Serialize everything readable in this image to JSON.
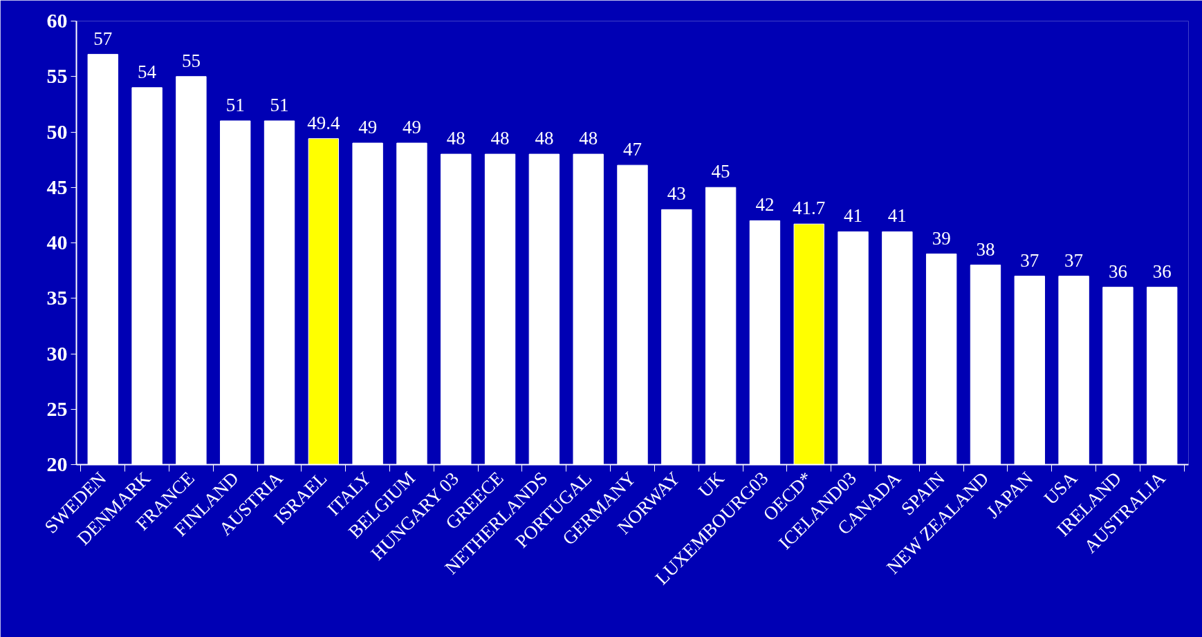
{
  "chart_data": {
    "type": "bar",
    "categories": [
      "SWEDEN",
      "DENMARK",
      "FRANCE",
      "FINLAND",
      "AUSTRIA",
      "ISRAEL",
      "ITALY",
      "BELGIUM",
      "HUNGARY 03",
      "GREECE",
      "NETHERLANDS",
      "PORTUGAL",
      "GERMANY",
      "NORWAY",
      "UK",
      "LUXEMBOURG03",
      "OECD*",
      "ICELAND03",
      "CANADA",
      "SPAIN",
      "NEW ZEALAND",
      "JAPAN",
      "USA",
      "IRELAND",
      "AUSTRALIA"
    ],
    "values": [
      57,
      54,
      55,
      51,
      51,
      49.4,
      49,
      49,
      48,
      48,
      48,
      48,
      47,
      43,
      45,
      42,
      41.7,
      41,
      41,
      39,
      38,
      37,
      37,
      36,
      36
    ],
    "data_labels": true,
    "colors": [
      "#ffffff",
      "#ffffff",
      "#ffffff",
      "#ffffff",
      "#ffffff",
      "#ffff00",
      "#ffffff",
      "#ffffff",
      "#ffffff",
      "#ffffff",
      "#ffffff",
      "#ffffff",
      "#ffffff",
      "#ffffff",
      "#ffffff",
      "#ffffff",
      "#ffff00",
      "#ffffff",
      "#ffffff",
      "#ffffff",
      "#ffffff",
      "#ffffff",
      "#ffffff",
      "#ffffff",
      "#ffffff"
    ],
    "ylim": [
      20,
      60
    ],
    "yticks": [
      20,
      25,
      30,
      35,
      40,
      45,
      50,
      55,
      60
    ],
    "grid": false
  }
}
